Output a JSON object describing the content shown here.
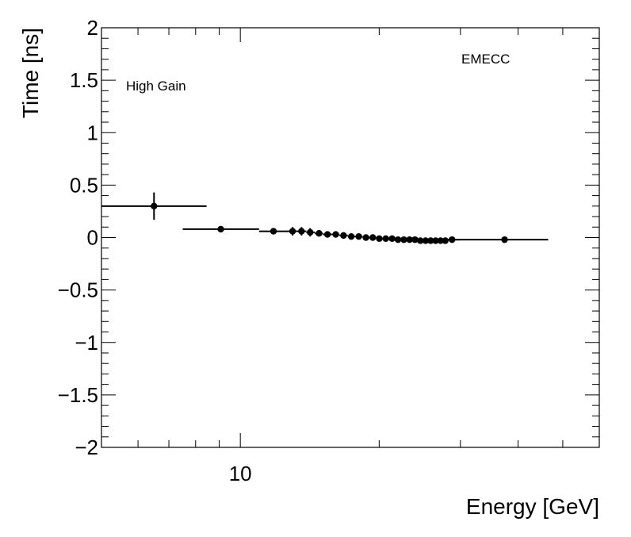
{
  "chart_data": {
    "type": "scatter",
    "xlabel": "Energy [GeV]",
    "ylabel": "Time [ns]",
    "x_scale": "log",
    "xlim": [
      5,
      60
    ],
    "ylim": [
      -2,
      2
    ],
    "grid": false,
    "annotations": [
      "High Gain",
      "EMECC"
    ],
    "x_tick_labels": [
      {
        "value": 10,
        "label": "10"
      }
    ],
    "y_tick_labels": [
      {
        "value": 2,
        "label": "2"
      },
      {
        "value": 1.5,
        "label": "1.5"
      },
      {
        "value": 1,
        "label": "1"
      },
      {
        "value": 0.5,
        "label": "0.5"
      },
      {
        "value": 0,
        "label": "0"
      },
      {
        "value": -0.5,
        "label": "−0.5"
      },
      {
        "value": -1,
        "label": "−1"
      },
      {
        "value": -1.5,
        "label": "−1.5"
      },
      {
        "value": -2,
        "label": "−2"
      }
    ],
    "points": [
      {
        "x": 6.5,
        "y": 0.3,
        "xlo": 5.0,
        "xhi": 8.45,
        "yerr": 0.13
      },
      {
        "x": 9.07,
        "y": 0.08,
        "xlo": 7.5,
        "xhi": 10.98,
        "yerr": 0.02
      },
      {
        "x": 11.8,
        "y": 0.06,
        "xlo": 10.98,
        "xhi": 12.7,
        "yerr": 0.02
      },
      {
        "x": 12.98,
        "y": 0.06,
        "xlo": 12.7,
        "xhi": 13.2,
        "yerr": 0.04
      },
      {
        "x": 13.57,
        "y": 0.06,
        "xlo": 13.2,
        "xhi": 13.9,
        "yerr": 0.04
      },
      {
        "x": 14.17,
        "y": 0.05,
        "xlo": 13.9,
        "xhi": 14.5,
        "yerr": 0.04
      },
      {
        "x": 14.81,
        "y": 0.04,
        "xlo": 14.5,
        "xhi": 15.1,
        "yerr": 0.03
      },
      {
        "x": 15.45,
        "y": 0.03,
        "xlo": 15.1,
        "xhi": 15.8,
        "yerr": 0.03
      },
      {
        "x": 16.1,
        "y": 0.03,
        "xlo": 15.8,
        "xhi": 16.4,
        "yerr": 0.03
      },
      {
        "x": 16.74,
        "y": 0.02,
        "xlo": 16.4,
        "xhi": 17.1,
        "yerr": 0.02
      },
      {
        "x": 17.4,
        "y": 0.01,
        "xlo": 17.1,
        "xhi": 17.7,
        "yerr": 0.02
      },
      {
        "x": 18.06,
        "y": 0.01,
        "xlo": 17.7,
        "xhi": 18.4,
        "yerr": 0.02
      },
      {
        "x": 18.72,
        "y": 0.0,
        "xlo": 18.4,
        "xhi": 19.0,
        "yerr": 0.02
      },
      {
        "x": 19.37,
        "y": 0.0,
        "xlo": 19.0,
        "xhi": 19.7,
        "yerr": 0.02
      },
      {
        "x": 20.01,
        "y": -0.01,
        "xlo": 19.7,
        "xhi": 20.3,
        "yerr": 0.02
      },
      {
        "x": 20.67,
        "y": -0.01,
        "xlo": 20.3,
        "xhi": 21.0,
        "yerr": 0.02
      },
      {
        "x": 21.33,
        "y": -0.01,
        "xlo": 21.0,
        "xhi": 21.6,
        "yerr": 0.02
      },
      {
        "x": 21.97,
        "y": -0.02,
        "xlo": 21.6,
        "xhi": 22.3,
        "yerr": 0.02
      },
      {
        "x": 22.62,
        "y": -0.02,
        "xlo": 22.3,
        "xhi": 22.9,
        "yerr": 0.02
      },
      {
        "x": 23.27,
        "y": -0.02,
        "xlo": 22.9,
        "xhi": 23.6,
        "yerr": 0.02
      },
      {
        "x": 23.91,
        "y": -0.02,
        "xlo": 23.6,
        "xhi": 24.2,
        "yerr": 0.02
      },
      {
        "x": 24.56,
        "y": -0.03,
        "xlo": 24.2,
        "xhi": 24.9,
        "yerr": 0.02
      },
      {
        "x": 25.22,
        "y": -0.03,
        "xlo": 24.9,
        "xhi": 25.5,
        "yerr": 0.02
      },
      {
        "x": 25.86,
        "y": -0.03,
        "xlo": 25.5,
        "xhi": 26.2,
        "yerr": 0.02
      },
      {
        "x": 26.5,
        "y": -0.03,
        "xlo": 26.2,
        "xhi": 26.8,
        "yerr": 0.02
      },
      {
        "x": 27.17,
        "y": -0.03,
        "xlo": 26.8,
        "xhi": 27.5,
        "yerr": 0.02
      },
      {
        "x": 27.82,
        "y": -0.03,
        "xlo": 27.5,
        "xhi": 28.1,
        "yerr": 0.02
      },
      {
        "x": 28.77,
        "y": -0.02,
        "xlo": 28.1,
        "xhi": 30.0,
        "yerr": 0.02
      },
      {
        "x": 37.4,
        "y": -0.02,
        "xlo": 28.7,
        "xhi": 46.5,
        "yerr": 0.01
      }
    ]
  }
}
